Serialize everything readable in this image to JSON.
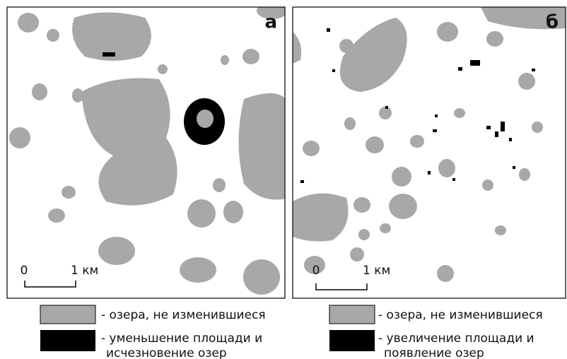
{
  "panels": [
    {
      "label": "а",
      "scale": {
        "start": "0",
        "end": "1 км"
      },
      "legend": [
        {
          "lines": [
            "- озера, не изменившиеся"
          ]
        },
        {
          "lines": [
            "- уменьшение площади и",
            "исчезновение озер"
          ]
        }
      ]
    },
    {
      "label": "б",
      "scale": {
        "start": "0",
        "end": "1 км"
      },
      "legend": [
        {
          "lines": [
            "- озера, не изменившиеся"
          ]
        },
        {
          "lines": [
            "- увеличение площади и",
            "появление озер"
          ]
        }
      ]
    }
  ]
}
